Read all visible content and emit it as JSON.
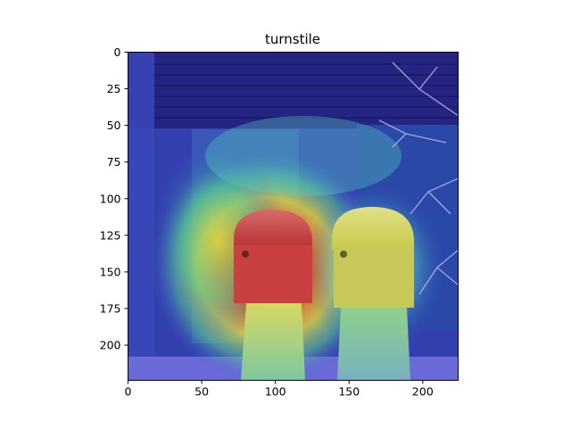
{
  "figure": {
    "title": "turnstile"
  },
  "heatmap_overlay": {
    "colormap": "jet",
    "subject": "street scene with two parking meters in front of a shop window, overlaid with an attention heatmap",
    "colors": {
      "sky_dark": "#1a1a6e",
      "shutter": "#2c2c90",
      "building_left": "#2f3fae",
      "hot_red": "#d0201a",
      "warm_orange": "#f08a1a",
      "yellow": "#e8e23a",
      "green": "#6fd06a",
      "cyan": "#39b8d8",
      "meter_red": "#c84a4a",
      "meter_yellow": "#d9d65a",
      "meter_post": "#9fcf8a",
      "ground": "#6a6ad8"
    }
  },
  "axes": {
    "xlim": [
      0,
      224
    ],
    "ylim": [
      224,
      0
    ],
    "xticks": [
      0,
      50,
      100,
      150,
      200
    ],
    "yticks": [
      0,
      25,
      50,
      75,
      100,
      125,
      150,
      175,
      200
    ]
  }
}
